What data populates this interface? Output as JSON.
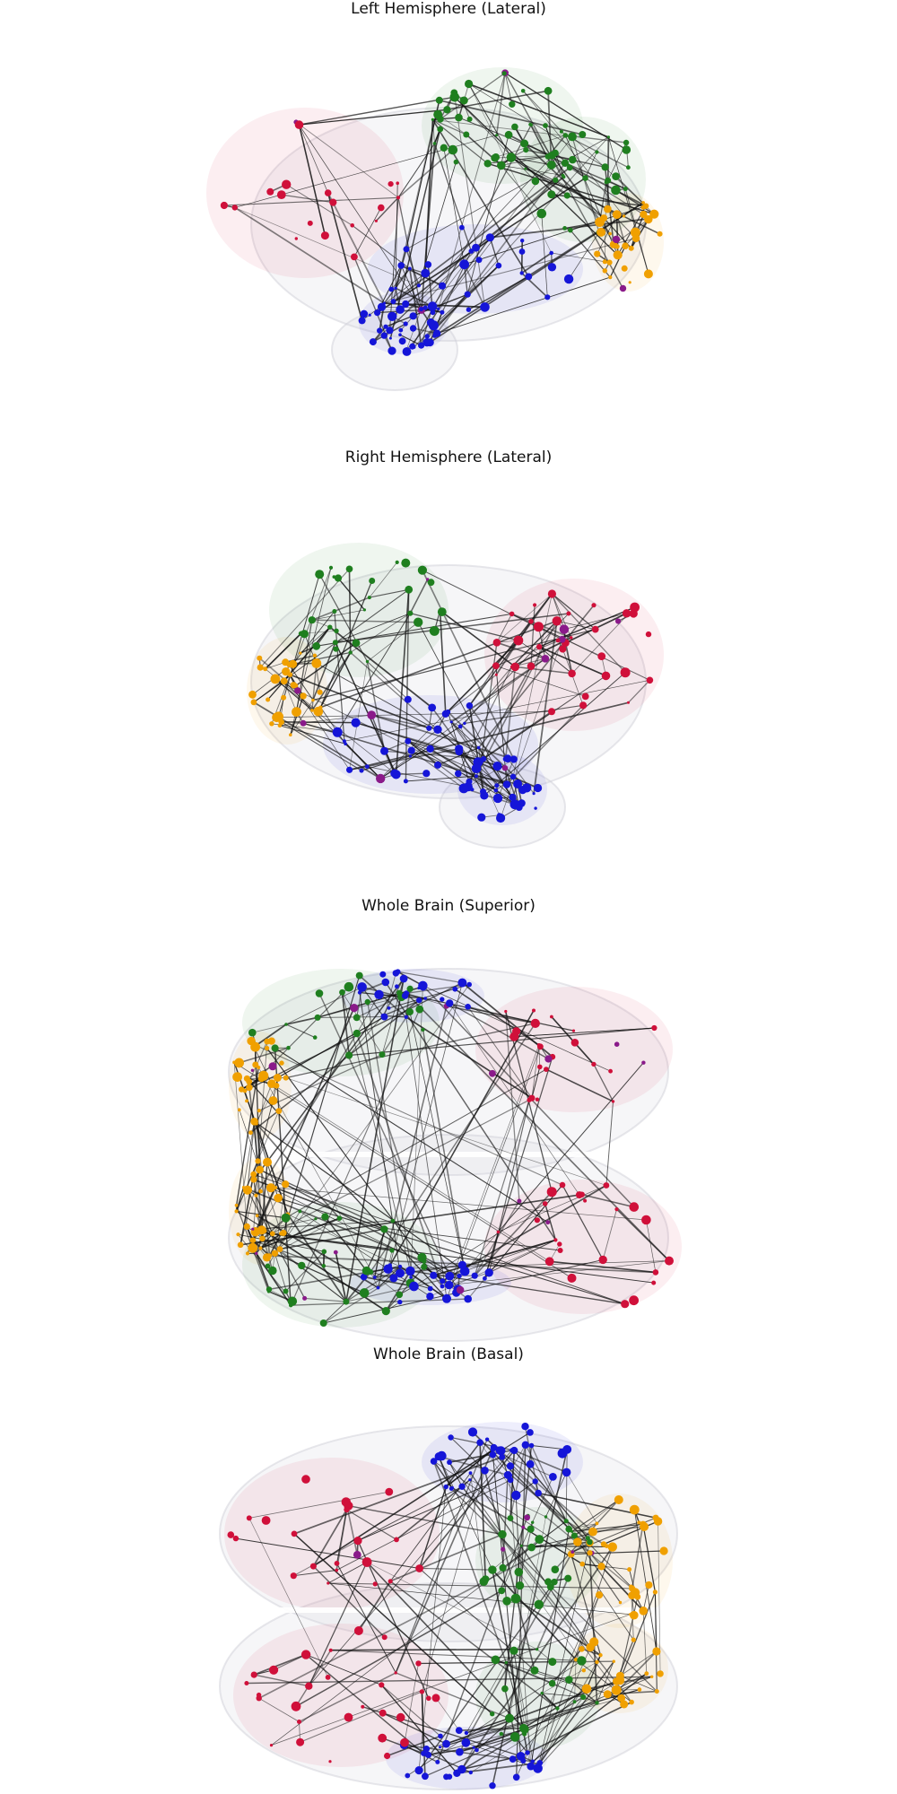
{
  "panels": [
    {
      "id": "left",
      "title": "Left Hemisphere (Lateral)",
      "view": "lateral-left"
    },
    {
      "id": "right",
      "title": "Right Hemisphere (Lateral)",
      "view": "lateral-right"
    },
    {
      "id": "superior",
      "title": "Whole Brain (Superior)",
      "view": "superior"
    },
    {
      "id": "basal",
      "title": "Whole Brain (Basal)",
      "view": "basal"
    }
  ],
  "module_colors": {
    "frontal": "#d0103a",
    "parietal": "#1f7f1f",
    "temporal": "#1515d8",
    "occipital": "#f0a000",
    "other": "#8a1a8a"
  },
  "edge_color": "#111111"
}
